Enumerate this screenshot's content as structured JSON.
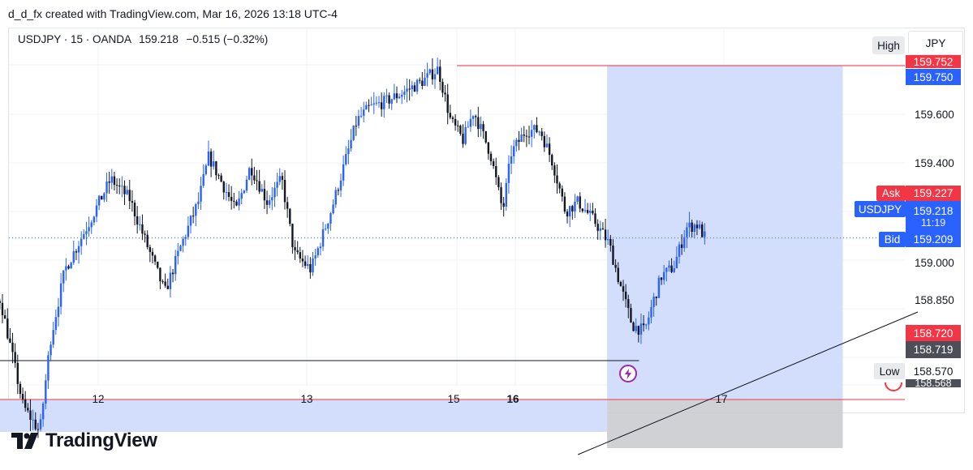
{
  "attribution": "d_d_fx created with TradingView.com, Mar 16, 2026 13:18 UTC-4",
  "legend": {
    "symbol": "USDJPY · 15 · OANDA",
    "last": "159.218",
    "change": "−0.515 (−0.32%)"
  },
  "buttons": {
    "high": "High",
    "currency": "JPY"
  },
  "price_tags": {
    "high_value": "159.752",
    "position_top": "159.750",
    "ask_label": "Ask",
    "ask_value": "159.227",
    "symbol_label": "USDJPY",
    "last_value": "159.218",
    "countdown": "11:19",
    "bid_label": "Bid",
    "bid_value": "159.209",
    "position_entry": "158.720",
    "position_bottom": "158.719",
    "low_label": "Low",
    "low_value": "158.570",
    "low_hidden_value": "158.568"
  },
  "brand": {
    "name": "TradingView"
  },
  "colors": {
    "up": "#2962ff",
    "down": "#131722",
    "target_zone": "#d2defb",
    "stop_zone": "#c8c9cd",
    "red_tag": "#f23645",
    "blue_tag": "#2962ff",
    "dark_tag": "#4c4f58"
  },
  "icons": [
    "lightning-icon",
    "tradingview-logo-icon"
  ],
  "chart_data": {
    "type": "candlestick",
    "symbol": "USDJPY",
    "interval": "15",
    "source": "OANDA",
    "y_ticks": [
      159.6,
      159.4,
      159.0,
      158.85
    ],
    "y_tick_labels": [
      "159.600",
      "159.400",
      "159.000",
      "158.850"
    ],
    "ylim": [
      158.5,
      159.85
    ],
    "x_tick_labels": [
      "12",
      "13",
      "15",
      "16",
      "17"
    ],
    "x_tick_bold": [
      false,
      false,
      false,
      true,
      false
    ],
    "x_day_positions": [
      1.0,
      2.0,
      2.72,
      3.0,
      4.0
    ],
    "current_price": 159.218,
    "high": 159.752,
    "low": 158.57,
    "horizontal_levels": [
      {
        "price": 159.75,
        "color": "red"
      },
      {
        "price": 158.72,
        "color": "red"
      },
      {
        "price": 158.84,
        "color": "black"
      }
    ],
    "trend_line": {
      "from": [
        3.3,
        158.55
      ],
      "to": [
        4.93,
        158.99
      ]
    },
    "position_zones": [
      {
        "from_day": 3.44,
        "to_day": 4.57,
        "top": 159.75,
        "bottom": 158.72,
        "kind": "target"
      },
      {
        "from_day": 0.32,
        "to_day": 3.44,
        "top": 158.72,
        "bottom": 158.62,
        "kind": "target"
      },
      {
        "from_day": 3.44,
        "to_day": 4.57,
        "top": 158.72,
        "bottom": 158.57,
        "kind": "stop"
      }
    ],
    "path_anchors": [
      [
        0.0,
        158.96
      ],
      [
        0.08,
        158.98
      ],
      [
        0.16,
        158.91
      ],
      [
        0.22,
        159.17
      ],
      [
        0.31,
        158.83
      ],
      [
        0.38,
        159.08
      ],
      [
        0.44,
        158.97
      ],
      [
        0.53,
        159.03
      ],
      [
        0.64,
        158.7
      ],
      [
        0.72,
        158.62
      ],
      [
        0.77,
        158.9
      ],
      [
        0.84,
        159.12
      ],
      [
        0.92,
        159.22
      ],
      [
        1.06,
        159.4
      ],
      [
        1.15,
        159.34
      ],
      [
        1.22,
        159.22
      ],
      [
        1.32,
        159.05
      ],
      [
        1.4,
        159.2
      ],
      [
        1.48,
        159.33
      ],
      [
        1.53,
        159.47
      ],
      [
        1.6,
        159.38
      ],
      [
        1.66,
        159.3
      ],
      [
        1.73,
        159.44
      ],
      [
        1.81,
        159.33
      ],
      [
        1.88,
        159.4
      ],
      [
        1.94,
        159.17
      ],
      [
        2.02,
        159.12
      ],
      [
        2.12,
        159.31
      ],
      [
        2.24,
        159.58
      ],
      [
        2.3,
        159.62
      ],
      [
        2.38,
        159.64
      ],
      [
        2.47,
        159.67
      ],
      [
        2.55,
        159.7
      ],
      [
        2.63,
        159.74
      ],
      [
        2.69,
        159.58
      ],
      [
        2.75,
        159.52
      ],
      [
        2.8,
        159.61
      ],
      [
        2.88,
        159.48
      ],
      [
        2.94,
        159.3
      ],
      [
        2.98,
        159.48
      ],
      [
        3.05,
        159.55
      ],
      [
        3.12,
        159.55
      ],
      [
        3.18,
        159.45
      ],
      [
        3.24,
        159.3
      ],
      [
        3.3,
        159.33
      ],
      [
        3.38,
        159.27
      ],
      [
        3.45,
        159.2
      ],
      [
        3.5,
        159.08
      ],
      [
        3.56,
        158.95
      ],
      [
        3.62,
        158.93
      ],
      [
        3.66,
        159.02
      ],
      [
        3.7,
        159.1
      ],
      [
        3.76,
        159.13
      ],
      [
        3.82,
        159.25
      ],
      [
        3.87,
        159.26
      ],
      [
        3.91,
        159.22
      ]
    ]
  }
}
